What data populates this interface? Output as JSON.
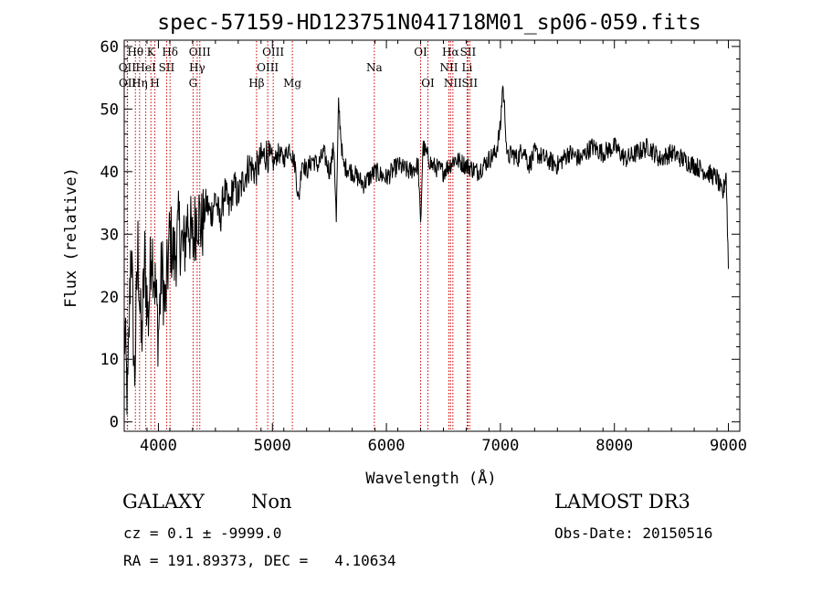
{
  "chart_data": {
    "type": "line",
    "title": "spec-57159-HD123751N041718M01_sp06-059.fits",
    "xlabel": "Wavelength (Å)",
    "ylabel": "Flux (relative)",
    "xlim": [
      3700,
      9100
    ],
    "ylim": [
      -1.5,
      61
    ],
    "x_ticks": [
      4000,
      5000,
      6000,
      7000,
      8000,
      9000
    ],
    "y_ticks": [
      0,
      10,
      20,
      30,
      40,
      50,
      60
    ],
    "grid": false,
    "line_color": "#000000",
    "marker_line_color": "#cc0000",
    "series": [
      {
        "x": [
          3700,
          3730,
          3760,
          3790,
          3820,
          3850,
          3880,
          3910,
          3940,
          3970,
          4000,
          4030,
          4060,
          4100,
          4140,
          4180,
          4220,
          4260,
          4300,
          4340,
          4380,
          4420,
          4460,
          4500,
          4540,
          4580,
          4620,
          4660,
          4700,
          4750,
          4800,
          4850,
          4900,
          4950,
          5000,
          5050,
          5100,
          5150,
          5200,
          5230,
          5260,
          5300,
          5350,
          5400,
          5450,
          5500,
          5540,
          5560,
          5580,
          5620,
          5700,
          5800,
          5900,
          6000,
          6100,
          6200,
          6280,
          6300,
          6320,
          6400,
          6500,
          6600,
          6700,
          6800,
          6900,
          6960,
          7000,
          7020,
          7040,
          7060,
          7100,
          7150,
          7200,
          7250,
          7300,
          7400,
          7500,
          7600,
          7700,
          7800,
          7900,
          8000,
          8100,
          8200,
          8300,
          8400,
          8500,
          8600,
          8700,
          8800,
          8900,
          8950,
          8980,
          9000
        ],
        "y": [
          15,
          3,
          30,
          6,
          28,
          12,
          26,
          16,
          29,
          22,
          14,
          25,
          18,
          30,
          26,
          31,
          27,
          33,
          28,
          34,
          31,
          35,
          33,
          36,
          32,
          37,
          34,
          38,
          36,
          39,
          41,
          40,
          42,
          43,
          41,
          43,
          42,
          44,
          41,
          35,
          42,
          40,
          42,
          41,
          43,
          40,
          44,
          32,
          51,
          41,
          40,
          38,
          40,
          39,
          41,
          40,
          41,
          31,
          44,
          41,
          40,
          42,
          41,
          40,
          42,
          43,
          47,
          54,
          49,
          42,
          43,
          42,
          44,
          41,
          43,
          42,
          41,
          43,
          42,
          44,
          43,
          44,
          42,
          43,
          44,
          42,
          43,
          42,
          41,
          40,
          39,
          36,
          40,
          25
        ]
      }
    ],
    "spectral_lines": [
      {
        "label": "OII",
        "wavelength": 3727,
        "row": 2
      },
      {
        "label": "OII",
        "wavelength": 3729,
        "row": 3
      },
      {
        "label": "Hθ",
        "wavelength": 3798,
        "row": 1
      },
      {
        "label": "Hη",
        "wavelength": 3835,
        "row": 3
      },
      {
        "label": "HeI",
        "wavelength": 3889,
        "row": 2
      },
      {
        "label": "K",
        "wavelength": 3934,
        "row": 1
      },
      {
        "label": "H",
        "wavelength": 3969,
        "row": 3
      },
      {
        "label": "SII",
        "wavelength": 4072,
        "row": 2
      },
      {
        "label": "Hδ",
        "wavelength": 4102,
        "row": 1
      },
      {
        "label": "Hγ",
        "wavelength": 4340,
        "row": 2
      },
      {
        "label": "G",
        "wavelength": 4304,
        "row": 3
      },
      {
        "label": "OIII",
        "wavelength": 4363,
        "row": 1
      },
      {
        "label": "Hβ",
        "wavelength": 4861,
        "row": 3
      },
      {
        "label": "OIII",
        "wavelength": 4959,
        "row": 2
      },
      {
        "label": "OIII",
        "wavelength": 5007,
        "row": 1
      },
      {
        "label": "Mg",
        "wavelength": 5175,
        "row": 3
      },
      {
        "label": "Na",
        "wavelength": 5894,
        "row": 2
      },
      {
        "label": "OI",
        "wavelength": 6300,
        "row": 1
      },
      {
        "label": "OI",
        "wavelength": 6364,
        "row": 3
      },
      {
        "label": "NII",
        "wavelength": 6548,
        "row": 2
      },
      {
        "label": "Hα",
        "wavelength": 6563,
        "row": 1
      },
      {
        "label": "NII",
        "wavelength": 6583,
        "row": 3
      },
      {
        "label": "Li",
        "wavelength": 6708,
        "row": 2
      },
      {
        "label": "SII",
        "wavelength": 6716,
        "row": 1
      },
      {
        "label": "SII",
        "wavelength": 6731,
        "row": 3
      }
    ]
  },
  "info": {
    "class_label": "GALAXY",
    "subclass": "Non",
    "survey": "LAMOST DR3",
    "redshift_text": "cz = 0.1 ± -9999.0",
    "obs_date": "Obs-Date: 20150516",
    "coords_text": "RA = 191.89373, DEC =   4.10634"
  }
}
